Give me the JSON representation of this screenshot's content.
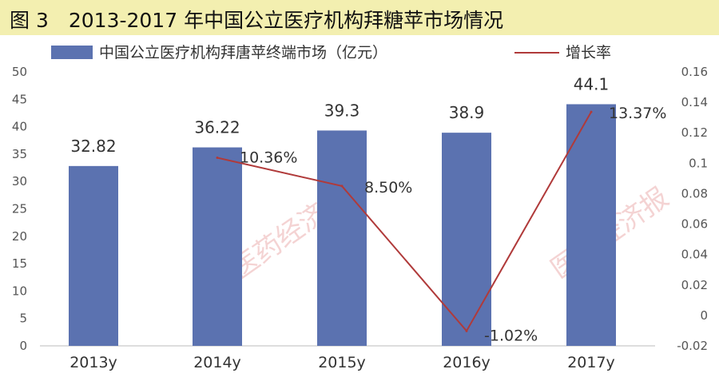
{
  "title": "图 3　2013-2017 年中国公立医疗机构拜糖苹市场情况",
  "watermark": "医药经济报",
  "chart_data": {
    "type": "bar",
    "categories": [
      "2013y",
      "2014y",
      "2015y",
      "2016y",
      "2017y"
    ],
    "series": [
      {
        "name": "中国公立医疗机构拜唐苹终端市场（亿元）",
        "type": "bar",
        "axis": "left",
        "color": "#5b72b0",
        "values": [
          32.82,
          36.22,
          39.3,
          38.9,
          44.1
        ],
        "labels": [
          "32.82",
          "36.22",
          "39.3",
          "38.9",
          "44.1"
        ]
      },
      {
        "name": "增长率",
        "type": "line",
        "axis": "right",
        "color": "#b03a3a",
        "values": [
          null,
          0.1036,
          0.085,
          -0.0102,
          0.1337
        ],
        "labels": [
          "",
          "10.36%",
          "8.50%",
          "-1.02%",
          "13.37%"
        ]
      }
    ],
    "y_left": {
      "min": 0,
      "max": 50,
      "ticks": [
        "0",
        "5",
        "10",
        "15",
        "20",
        "25",
        "30",
        "35",
        "40",
        "45",
        "50"
      ]
    },
    "y_right": {
      "min": -0.02,
      "max": 0.16,
      "ticks": [
        "-0.02",
        "0",
        "0.02",
        "0.04",
        "0.06",
        "0.08",
        "0.1",
        "0.12",
        "0.14",
        "0.16"
      ]
    },
    "legend": "top",
    "grid": false
  }
}
